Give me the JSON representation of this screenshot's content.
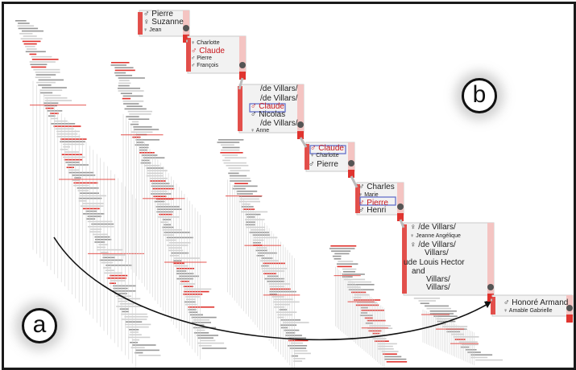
{
  "panels": {
    "a": "a",
    "b": "b"
  },
  "colors": {
    "red": "#e0342f",
    "gray": "#bdbdbd",
    "dark": "#555555",
    "blue": "#5a66c8"
  },
  "labels": [
    {
      "t": "♂ Pierre",
      "s": "n"
    },
    {
      "t": "♀ Suzanne",
      "s": "n"
    },
    {
      "t": "♀ Jean",
      "s": "s"
    },
    {
      "t": "♀ Charlotte",
      "s": "s"
    },
    {
      "t": "♂ Claude",
      "s": "r"
    },
    {
      "t": "♂ Pierre",
      "s": "s"
    },
    {
      "t": "♂ François",
      "s": "s"
    },
    {
      "t": "/de Villars/",
      "s": "n"
    },
    {
      "t": "/de Villars/",
      "s": "n"
    },
    {
      "t": "♂ Claude",
      "s": "r"
    },
    {
      "t": "♂ Nicolas",
      "s": "n"
    },
    {
      "t": "/de Villars/",
      "s": "n"
    },
    {
      "t": "♀ Anne",
      "s": "s"
    },
    {
      "t": "♂ Claude",
      "s": "r"
    },
    {
      "t": "♀ Charlotte",
      "s": "s"
    },
    {
      "t": "♂ Pierre",
      "s": "n"
    },
    {
      "t": "♂ Charles",
      "s": "n"
    },
    {
      "t": "♀ Marie",
      "s": "s"
    },
    {
      "t": "♂ Pierre",
      "s": "r"
    },
    {
      "t": "♂ Henri",
      "s": "n"
    },
    {
      "t": "♀ /de Villars/",
      "s": "n"
    },
    {
      "t": "♀ Jeanne Angélique",
      "s": "s"
    },
    {
      "t": "♀ /de Villars/",
      "s": "n"
    },
    {
      "t": "Villars/",
      "s": "n"
    },
    {
      "t": "ude Louis Hector",
      "s": "n"
    },
    {
      "t": "and",
      "s": "n"
    },
    {
      "t": "Villars/",
      "s": "n"
    },
    {
      "t": "Villars/",
      "s": "n"
    },
    {
      "t": "♂ Honoré Armand",
      "s": "n"
    },
    {
      "t": "♀ Amable Gabrielle",
      "s": "s"
    }
  ]
}
